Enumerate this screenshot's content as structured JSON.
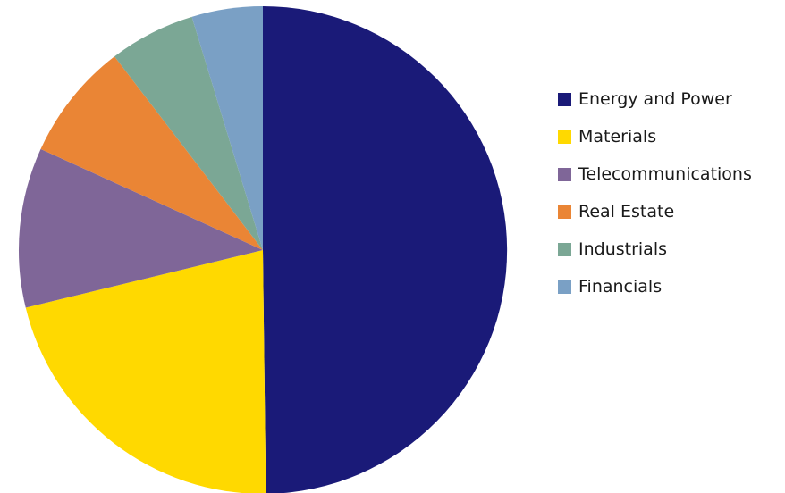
{
  "chart_data": {
    "type": "pie",
    "title": "",
    "start": "12 o'clock",
    "direction": "clockwise",
    "legend_position": "right",
    "categories": [
      "Energy and Power",
      "Materials",
      "Telecommunications",
      "Real Estate",
      "Industrials",
      "Financials"
    ],
    "values": [
      49.8,
      21.4,
      10.6,
      7.8,
      5.7,
      4.7
    ],
    "colors": [
      "#1a1a78",
      "#ffd900",
      "#7f6698",
      "#ea8535",
      "#7ba795",
      "#7aa0c5"
    ]
  }
}
